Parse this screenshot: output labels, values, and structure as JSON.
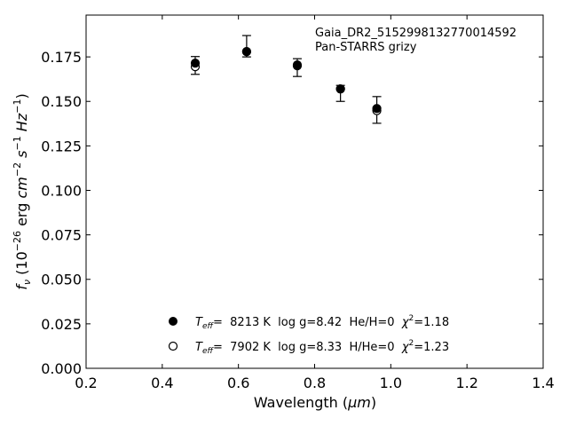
{
  "chart_data": {
    "type": "scatter",
    "xlabel_prefix": "Wavelength (",
    "xlabel_unit": "μm",
    "xlabel_suffix": ")",
    "ylabel_f": "f",
    "ylabel_nu": "ν",
    "ylabel_open": " (10",
    "ylabel_exp1": "−26",
    "ylabel_erg": " erg ",
    "ylabel_cm": "cm",
    "ylabel_exp2": "−2",
    "ylabel_s": " s",
    "ylabel_exp3": "−1",
    "ylabel_hz": " Hz",
    "ylabel_exp4": "−1",
    "ylabel_close": ")",
    "xlim": [
      0.2,
      1.4
    ],
    "ylim": [
      0.0,
      0.1985
    ],
    "xticks": [
      "0.2",
      "0.4",
      "0.6",
      "0.8",
      "1.0",
      "1.2",
      "1.4"
    ],
    "xtick_values": [
      0.2,
      0.4,
      0.6,
      0.8,
      1.0,
      1.2,
      1.4
    ],
    "yticks": [
      "0.000",
      "0.025",
      "0.050",
      "0.075",
      "0.100",
      "0.125",
      "0.150",
      "0.175"
    ],
    "ytick_values": [
      0.0,
      0.025,
      0.05,
      0.075,
      0.1,
      0.125,
      0.15,
      0.175
    ],
    "annotation": [
      "Gaia_DR2_5152998132770014592",
      "Pan-STARRS grizy"
    ],
    "observed": {
      "x": [
        0.4866,
        0.6215,
        0.7545,
        0.8679,
        0.9633
      ],
      "y": [
        0.1702,
        0.181,
        0.169,
        0.1545,
        0.1452
      ],
      "yerr": [
        0.005,
        0.006,
        0.005,
        0.0045,
        0.0075
      ]
    },
    "series": [
      {
        "marker": "filled",
        "x": [
          0.4866,
          0.6215,
          0.7545,
          0.8679,
          0.9633
        ],
        "y": [
          0.1715,
          0.178,
          0.1705,
          0.157,
          0.146
        ],
        "legend_teff_label": "T",
        "legend_teff_sub": "eff",
        "legend_text": "=  8213 K  log g=8.42  He/H=0  ",
        "legend_chi": "χ",
        "legend_chi_exp": "2",
        "legend_chi_val": "=1.18"
      },
      {
        "marker": "open",
        "x": [
          0.4866,
          0.6215,
          0.7545,
          0.8679,
          0.9633
        ],
        "y": [
          0.1695,
          0.178,
          0.17,
          0.157,
          0.1448
        ],
        "legend_teff_label": "T",
        "legend_teff_sub": "eff",
        "legend_text": "=  7902 K  log g=8.33  H/He=0  ",
        "legend_chi": "χ",
        "legend_chi_exp": "2",
        "legend_chi_val": "=1.23"
      }
    ],
    "legend_position": "lower-center",
    "grid": false
  }
}
